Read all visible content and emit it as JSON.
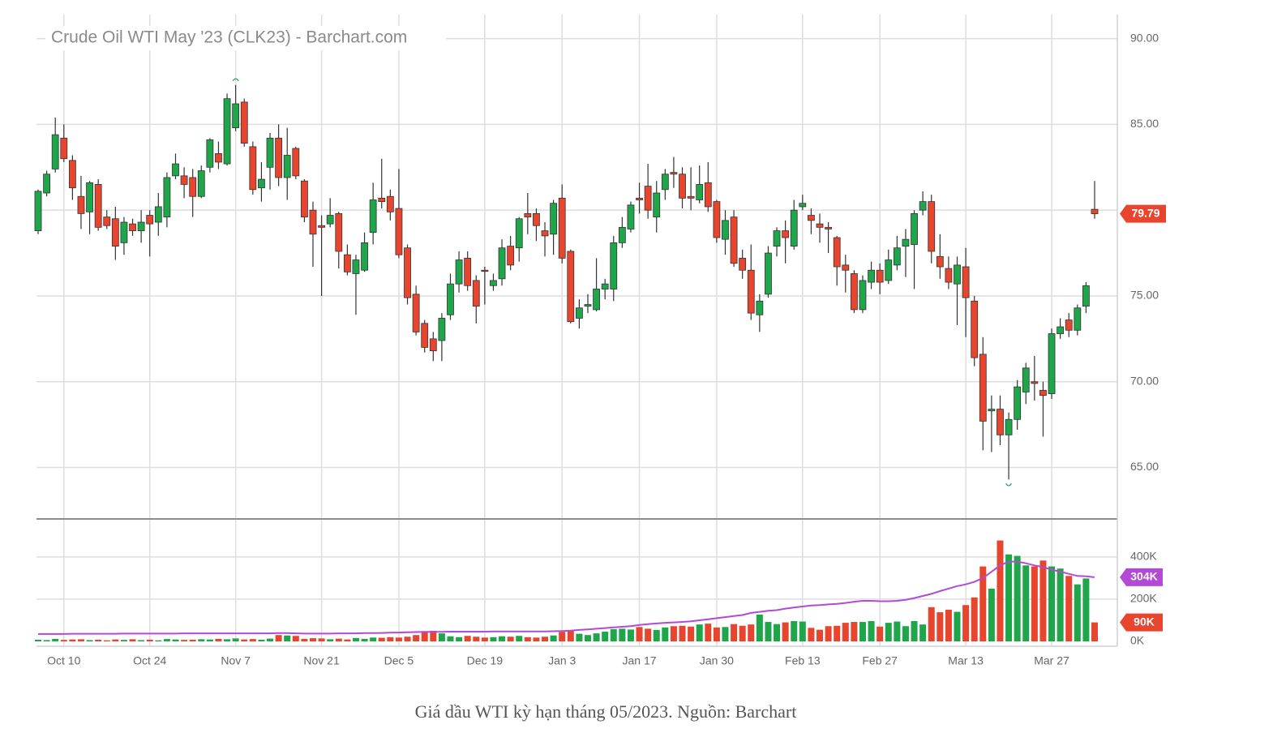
{
  "chart_data": [
    {
      "type": "candlestick",
      "title": "Crude Oil WTI May '23 (CLK23) - Barchart.com",
      "up_color": "#1fa64b",
      "down_color": "#e8452f",
      "grid": true,
      "ylim": [
        62.0,
        91.4
      ],
      "yticks": [
        {
          "value": 65,
          "label": "65.00"
        },
        {
          "value": 70,
          "label": "70.00"
        },
        {
          "value": 75,
          "label": "75.00"
        },
        {
          "value": 80,
          "label": "80.00"
        },
        {
          "value": 85,
          "label": "85.00"
        },
        {
          "value": 90,
          "label": "90.00"
        }
      ],
      "open": [
        78.8,
        81.0,
        82.4,
        84.2,
        82.9,
        80.8,
        79.9,
        81.5,
        79.6,
        79.5,
        78.1,
        79.2,
        78.8,
        79.7,
        79.3,
        79.6,
        82.0,
        82.0,
        81.9,
        80.8,
        82.5,
        83.3,
        82.7,
        84.8,
        86.3,
        83.7,
        81.3,
        82.5,
        84.2,
        81.9,
        83.6,
        81.7,
        80.0,
        79.1,
        79.2,
        79.8,
        77.4,
        76.3,
        76.5,
        78.7,
        80.7,
        80.8,
        80.1,
        77.8,
        75.1,
        73.4,
        72.5,
        72.4,
        73.9,
        75.7,
        77.2,
        75.9,
        76.5,
        75.6,
        76.0,
        77.9,
        77.8,
        79.8,
        79.8,
        78.8,
        78.6,
        80.7,
        77.6,
        73.7,
        74.4,
        74.2,
        75.4,
        75.4,
        78.1,
        78.9,
        80.7,
        81.4,
        79.6,
        81.2,
        82.2,
        82.1,
        80.8,
        80.6,
        81.6,
        80.5,
        78.3,
        79.6,
        77.2,
        76.5,
        73.9,
        75.1,
        77.9,
        78.8,
        77.9,
        80.2,
        79.7,
        79.2,
        79.0,
        78.4,
        76.8,
        76.3,
        74.2,
        75.8,
        76.5,
        75.9,
        76.8,
        77.9,
        78.0,
        80.0,
        80.5,
        77.3,
        76.6,
        75.7,
        76.7,
        74.7,
        71.6,
        68.3,
        68.4,
        66.9,
        67.8,
        69.4,
        70.0,
        69.5,
        69.3,
        72.8,
        73.6,
        73.0,
        74.4,
        80.05
      ],
      "high": [
        81.2,
        82.3,
        85.4,
        85.0,
        83.2,
        82.0,
        81.7,
        81.8,
        80.0,
        80.2,
        79.6,
        79.5,
        80.0,
        80.0,
        81.0,
        82.2,
        83.3,
        82.5,
        82.4,
        82.6,
        84.2,
        84.0,
        86.8,
        87.3,
        86.5,
        84.0,
        82.8,
        84.5,
        85.0,
        84.8,
        83.7,
        81.8,
        80.5,
        79.7,
        80.7,
        79.9,
        78.0,
        77.4,
        78.7,
        81.6,
        83.0,
        81.2,
        82.4,
        78.0,
        75.6,
        73.6,
        72.9,
        74.0,
        76.3,
        77.6,
        77.6,
        76.2,
        76.7,
        76.3,
        78.3,
        78.5,
        79.6,
        81.0,
        80.1,
        79.3,
        80.6,
        81.5,
        77.7,
        74.8,
        75.1,
        77.2,
        76.0,
        78.5,
        79.6,
        80.5,
        81.6,
        82.7,
        81.7,
        82.4,
        83.1,
        82.5,
        82.5,
        82.6,
        82.8,
        80.6,
        80.0,
        80.0,
        77.7,
        78.0,
        75.1,
        77.9,
        79.0,
        79.4,
        80.6,
        80.9,
        80.1,
        79.8,
        79.3,
        78.5,
        77.4,
        76.5,
        76.2,
        77.0,
        76.9,
        77.7,
        78.5,
        78.9,
        80.0,
        81.1,
        80.9,
        78.6,
        77.3,
        77.3,
        77.8,
        75.0,
        72.6,
        69.2,
        69.2,
        68.2,
        70.1,
        71.1,
        71.5,
        70.0,
        73.1,
        73.7,
        74.0,
        74.5,
        75.8,
        81.7
      ],
      "low": [
        78.6,
        80.8,
        82.2,
        82.8,
        80.6,
        78.9,
        78.6,
        78.8,
        78.9,
        77.1,
        77.4,
        78.5,
        78.1,
        77.3,
        78.5,
        79.0,
        81.8,
        80.7,
        79.6,
        80.7,
        82.2,
        82.4,
        82.6,
        84.6,
        83.7,
        80.9,
        80.5,
        81.2,
        81.4,
        80.6,
        81.8,
        79.3,
        76.7,
        75.0,
        79.0,
        76.6,
        76.2,
        73.9,
        76.4,
        78.0,
        80.1,
        79.4,
        77.2,
        74.5,
        72.7,
        71.7,
        71.2,
        71.2,
        73.6,
        75.2,
        75.3,
        73.4,
        74.5,
        75.3,
        75.6,
        76.5,
        77.0,
        78.6,
        78.2,
        77.3,
        77.4,
        76.9,
        73.4,
        73.1,
        74.0,
        74.1,
        74.8,
        74.7,
        77.8,
        78.7,
        79.8,
        79.5,
        78.7,
        80.6,
        81.3,
        80.1,
        80.0,
        80.4,
        79.9,
        78.1,
        77.4,
        76.7,
        76.0,
        73.6,
        72.9,
        74.9,
        77.3,
        76.9,
        77.7,
        80.0,
        78.6,
        78.1,
        77.5,
        75.6,
        75.2,
        74.0,
        74.0,
        75.4,
        75.1,
        75.7,
        76.5,
        76.1,
        75.4,
        79.7,
        76.9,
        76.0,
        75.4,
        73.3,
        72.6,
        70.9,
        66.0,
        65.9,
        66.3,
        64.3,
        67.2,
        68.7,
        68.9,
        66.8,
        69.0,
        72.5,
        72.6,
        72.7,
        74.0,
        79.5
      ],
      "close": [
        81.1,
        82.1,
        84.4,
        83.0,
        81.3,
        79.8,
        81.6,
        79.0,
        79.1,
        77.9,
        79.3,
        78.8,
        79.3,
        79.2,
        80.2,
        81.9,
        82.7,
        81.5,
        80.8,
        82.3,
        84.1,
        82.8,
        86.5,
        86.2,
        83.9,
        81.2,
        81.8,
        84.2,
        81.9,
        83.2,
        82.0,
        79.6,
        78.6,
        79.0,
        79.7,
        77.6,
        76.4,
        77.1,
        78.1,
        80.6,
        80.5,
        79.9,
        77.4,
        74.9,
        72.9,
        72.0,
        71.8,
        73.7,
        75.7,
        77.1,
        75.6,
        74.4,
        76.45,
        75.9,
        77.8,
        76.8,
        79.5,
        79.6,
        79.1,
        78.5,
        80.4,
        77.2,
        73.5,
        74.3,
        74.5,
        75.4,
        75.7,
        78.1,
        79.0,
        80.3,
        80.6,
        80.0,
        81.0,
        82.1,
        82.1,
        80.7,
        80.7,
        81.5,
        80.2,
        78.4,
        79.4,
        76.9,
        76.5,
        74.0,
        74.7,
        77.5,
        78.8,
        78.4,
        80.0,
        80.4,
        79.4,
        79.0,
        78.9,
        76.7,
        76.5,
        74.2,
        75.9,
        76.5,
        75.8,
        77.1,
        77.8,
        78.3,
        79.8,
        80.5,
        77.6,
        76.7,
        75.8,
        76.8,
        74.9,
        71.4,
        67.7,
        68.4,
        66.9,
        67.8,
        69.7,
        70.8,
        69.9,
        69.2,
        72.8,
        73.2,
        73.0,
        74.3,
        75.6,
        79.79
      ]
    },
    {
      "type": "bar",
      "grid": true,
      "categories": [
        null,
        null,
        null,
        "Oct 10",
        null,
        null,
        null,
        null,
        null,
        null,
        null,
        null,
        null,
        "Oct 24",
        null,
        null,
        null,
        null,
        null,
        null,
        null,
        null,
        null,
        "Nov 7",
        null,
        null,
        null,
        null,
        null,
        null,
        null,
        null,
        null,
        "Nov 21",
        null,
        null,
        null,
        null,
        null,
        null,
        null,
        null,
        "Dec 5",
        null,
        null,
        null,
        null,
        null,
        null,
        null,
        null,
        null,
        "Dec 19",
        null,
        null,
        null,
        null,
        null,
        null,
        null,
        null,
        "Jan 3",
        null,
        null,
        null,
        null,
        null,
        null,
        null,
        null,
        "Jan 17",
        null,
        null,
        null,
        null,
        null,
        null,
        null,
        null,
        "Jan 30",
        null,
        null,
        null,
        null,
        null,
        null,
        null,
        null,
        null,
        "Feb 13",
        null,
        null,
        null,
        null,
        null,
        null,
        null,
        null,
        "Feb 27",
        null,
        null,
        null,
        null,
        null,
        null,
        null,
        null,
        null,
        "Mar 13",
        null,
        null,
        null,
        null,
        null,
        null,
        null,
        null,
        null,
        "Mar 27",
        null,
        null,
        null,
        null,
        null
      ],
      "ylim": [
        0,
        580
      ],
      "yticks": [
        {
          "value": 0,
          "label": "0K"
        },
        {
          "value": 200,
          "label": "200K"
        },
        {
          "value": 400,
          "label": "400K"
        }
      ],
      "values": [
        8,
        6,
        12,
        7,
        9,
        10,
        6,
        8,
        5,
        9,
        7,
        10,
        6,
        8,
        5,
        11,
        9,
        7,
        8,
        10,
        9,
        12,
        10,
        14,
        9,
        11,
        8,
        13,
        30,
        28,
        26,
        12,
        15,
        14,
        10,
        13,
        9,
        16,
        12,
        18,
        17,
        20,
        18,
        22,
        30,
        48,
        50,
        38,
        24,
        20,
        26,
        22,
        18,
        20,
        24,
        22,
        26,
        20,
        18,
        22,
        28,
        45,
        48,
        36,
        30,
        38,
        46,
        58,
        60,
        56,
        68,
        60,
        54,
        66,
        72,
        74,
        70,
        80,
        84,
        66,
        68,
        82,
        74,
        80,
        127,
        92,
        82,
        90,
        96,
        94,
        64,
        55,
        72,
        74,
        88,
        92,
        92,
        96,
        70,
        88,
        94,
        72,
        96,
        80,
        162,
        138,
        150,
        140,
        172,
        208,
        355,
        250,
        478,
        412,
        405,
        360,
        355,
        383,
        355,
        345,
        310,
        270,
        298,
        90
      ],
      "value_labels": [
        null,
        null,
        null,
        null,
        null,
        null,
        null,
        null,
        null,
        null,
        null,
        null,
        null,
        null,
        null,
        null,
        null,
        null,
        null,
        null,
        null,
        null,
        null,
        null,
        null,
        null,
        null,
        null,
        null,
        null,
        null,
        null,
        null,
        null,
        null,
        null,
        null,
        null,
        null,
        null,
        null,
        null,
        null,
        null,
        null,
        null,
        null,
        null,
        null,
        null,
        null,
        null,
        null,
        null,
        null,
        null,
        null,
        null,
        null,
        null,
        null,
        null,
        null,
        null,
        null,
        null,
        null,
        null,
        null,
        null,
        null,
        null,
        null,
        null,
        null,
        null,
        null,
        null,
        null,
        null,
        null,
        null,
        null,
        null,
        null,
        null,
        null,
        null,
        null,
        null,
        null,
        null,
        null,
        null,
        null,
        null,
        null,
        null,
        null,
        null,
        null,
        null,
        null,
        null,
        null,
        null,
        null,
        null,
        null,
        null,
        null,
        null,
        null,
        null,
        null,
        null,
        null,
        null,
        null,
        null,
        null,
        null,
        null,
        "90K"
      ],
      "ma": {
        "color": "#b34ad6",
        "values": [
          35,
          35,
          35,
          35,
          36,
          36,
          36,
          36,
          36,
          36,
          37,
          37,
          37,
          37,
          37,
          37,
          37,
          38,
          38,
          38,
          38,
          38,
          38,
          38,
          38,
          38,
          38,
          38,
          39,
          39,
          38,
          37,
          37,
          37,
          37,
          38,
          38,
          38,
          39,
          39,
          40,
          41,
          42,
          43,
          44,
          45,
          45,
          45,
          46,
          46,
          46,
          46,
          46,
          47,
          47,
          47,
          47,
          47,
          47,
          47,
          48,
          49,
          51,
          54,
          57,
          60,
          63,
          66,
          69,
          72,
          78,
          82,
          85,
          88,
          90,
          92,
          95,
          100,
          105,
          110,
          115,
          120,
          125,
          135,
          140,
          145,
          148,
          155,
          160,
          165,
          170,
          172,
          175,
          178,
          182,
          188,
          192,
          192,
          190,
          190,
          192,
          197,
          205,
          215,
          225,
          238,
          250,
          262,
          270,
          282,
          300,
          330,
          360,
          378,
          378,
          370,
          360,
          352,
          340,
          330,
          320,
          310,
          308,
          304
        ],
        "value_labels": [
          null,
          null,
          null,
          null,
          null,
          null,
          null,
          null,
          null,
          null,
          null,
          null,
          null,
          null,
          null,
          null,
          null,
          null,
          null,
          null,
          null,
          null,
          null,
          null,
          null,
          null,
          null,
          null,
          null,
          null,
          null,
          null,
          null,
          null,
          null,
          null,
          null,
          null,
          null,
          null,
          null,
          null,
          null,
          null,
          null,
          null,
          null,
          null,
          null,
          null,
          null,
          null,
          null,
          null,
          null,
          null,
          null,
          null,
          null,
          null,
          null,
          null,
          null,
          null,
          null,
          null,
          null,
          null,
          null,
          null,
          null,
          null,
          null,
          null,
          null,
          null,
          null,
          null,
          null,
          null,
          null,
          null,
          null,
          null,
          null,
          null,
          null,
          null,
          null,
          null,
          null,
          null,
          null,
          null,
          null,
          null,
          null,
          null,
          null,
          null,
          null,
          null,
          null,
          null,
          null,
          null,
          null,
          null,
          null,
          null,
          null,
          null,
          null,
          null,
          null,
          null,
          null,
          null,
          null,
          null,
          null,
          null,
          null,
          "304K"
        ]
      }
    }
  ],
  "caption": "Giá dầu WTI kỳ hạn tháng 05/2023. Nguồn: Barchart"
}
